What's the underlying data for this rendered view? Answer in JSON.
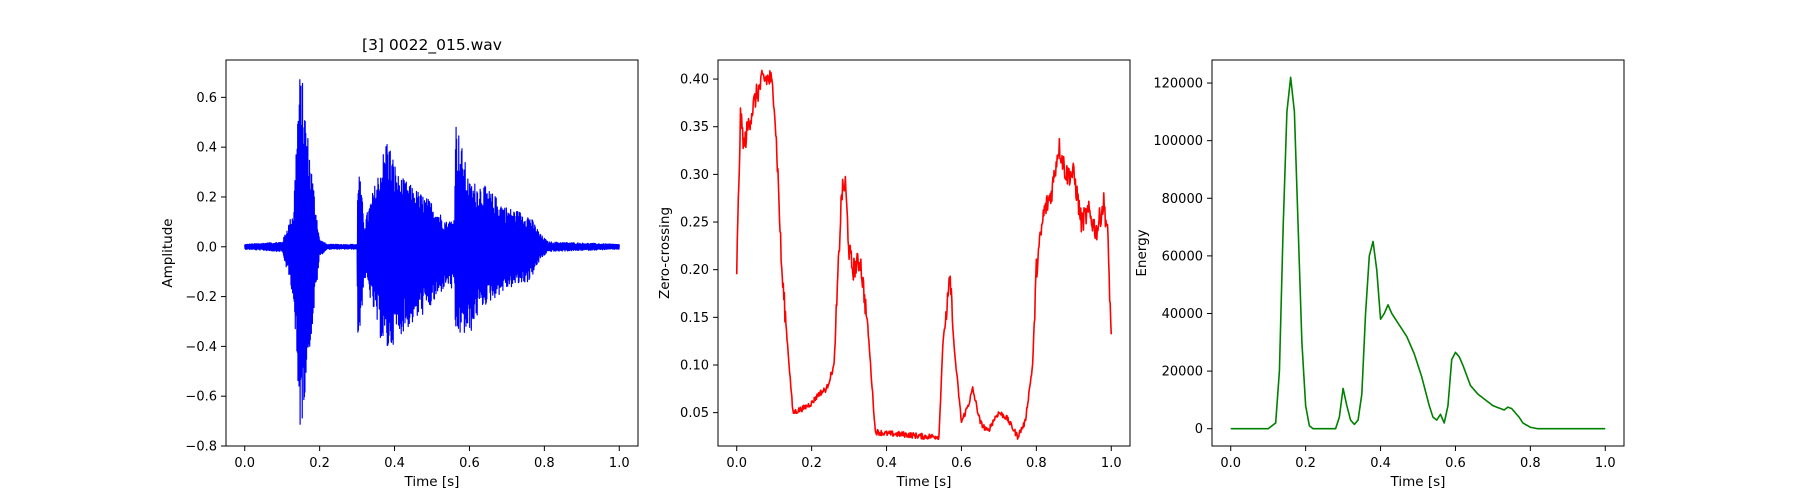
{
  "colors": {
    "waveform": "#0000ff",
    "zcr": "#ff0000",
    "energy": "#008000"
  },
  "chart_data": [
    {
      "type": "line",
      "title": "[3] 0022_015.wav",
      "xlabel": "Time [s]",
      "ylabel": "Amplitude",
      "xlim": [
        -0.05,
        1.05
      ],
      "ylim": [
        -0.8,
        0.75
      ],
      "xticks": [
        "0.0",
        "0.2",
        "0.4",
        "0.6",
        "0.8",
        "1.0"
      ],
      "yticks": [
        "-0.8",
        "-0.6",
        "-0.4",
        "-0.2",
        "0.0",
        "0.2",
        "0.4",
        "0.6"
      ],
      "series": [
        {
          "color": "#0000ff",
          "envelope": {
            "x": [
              0.0,
              0.1,
              0.13,
              0.145,
              0.155,
              0.165,
              0.18,
              0.2,
              0.22,
              0.3,
              0.302,
              0.32,
              0.36,
              0.38,
              0.41,
              0.45,
              0.5,
              0.54,
              0.56,
              0.562,
              0.6,
              0.63,
              0.7,
              0.76,
              0.79,
              0.81,
              1.0
            ],
            "upper": [
              0.01,
              0.02,
              0.15,
              0.7,
              0.66,
              0.5,
              0.3,
              0.03,
              0.01,
              0.01,
              0.36,
              0.1,
              0.32,
              0.45,
              0.29,
              0.24,
              0.18,
              0.1,
              0.12,
              0.53,
              0.26,
              0.26,
              0.16,
              0.13,
              0.05,
              0.02,
              0.01
            ],
            "lower": [
              -0.01,
              -0.02,
              -0.2,
              -0.75,
              -0.7,
              -0.5,
              -0.34,
              -0.04,
              -0.01,
              -0.01,
              -0.45,
              -0.12,
              -0.36,
              -0.43,
              -0.36,
              -0.31,
              -0.24,
              -0.15,
              -0.19,
              -0.36,
              -0.36,
              -0.25,
              -0.17,
              -0.14,
              -0.05,
              -0.02,
              -0.01
            ]
          }
        }
      ]
    },
    {
      "type": "line",
      "title": "",
      "xlabel": "Time [s]",
      "ylabel": "Zero-crossing",
      "xlim": [
        -0.05,
        1.05
      ],
      "ylim": [
        0.015,
        0.42
      ],
      "xticks": [
        "0.0",
        "0.2",
        "0.4",
        "0.6",
        "0.8",
        "1.0"
      ],
      "yticks": [
        "0.05",
        "0.10",
        "0.15",
        "0.20",
        "0.25",
        "0.30",
        "0.35",
        "0.40"
      ],
      "series": [
        {
          "color": "#ff0000",
          "x": [
            0.0,
            0.01,
            0.02,
            0.03,
            0.05,
            0.07,
            0.09,
            0.1,
            0.11,
            0.12,
            0.14,
            0.15,
            0.18,
            0.2,
            0.22,
            0.24,
            0.26,
            0.28,
            0.29,
            0.3,
            0.31,
            0.33,
            0.35,
            0.37,
            0.4,
            0.45,
            0.5,
            0.54,
            0.55,
            0.57,
            0.58,
            0.6,
            0.62,
            0.63,
            0.65,
            0.67,
            0.69,
            0.7,
            0.72,
            0.75,
            0.77,
            0.79,
            0.8,
            0.82,
            0.84,
            0.86,
            0.88,
            0.9,
            0.92,
            0.94,
            0.96,
            0.98,
            0.99,
            1.0
          ],
          "y": [
            0.2,
            0.36,
            0.33,
            0.35,
            0.38,
            0.4,
            0.4,
            0.38,
            0.3,
            0.2,
            0.1,
            0.05,
            0.055,
            0.06,
            0.07,
            0.075,
            0.1,
            0.28,
            0.29,
            0.22,
            0.2,
            0.21,
            0.14,
            0.03,
            0.028,
            0.027,
            0.025,
            0.025,
            0.12,
            0.19,
            0.12,
            0.04,
            0.06,
            0.075,
            0.04,
            0.03,
            0.045,
            0.05,
            0.045,
            0.025,
            0.04,
            0.1,
            0.2,
            0.26,
            0.28,
            0.33,
            0.3,
            0.3,
            0.25,
            0.26,
            0.24,
            0.27,
            0.24,
            0.13
          ]
        }
      ]
    },
    {
      "type": "line",
      "title": "",
      "xlabel": "Time [s]",
      "ylabel": "Energy",
      "xlim": [
        -0.05,
        1.05
      ],
      "ylim": [
        -6000,
        128000
      ],
      "xticks": [
        "0.0",
        "0.2",
        "0.4",
        "0.6",
        "0.8",
        "1.0"
      ],
      "yticks": [
        "0",
        "20000",
        "40000",
        "60000",
        "80000",
        "100000",
        "120000"
      ],
      "series": [
        {
          "color": "#008000",
          "x": [
            0.0,
            0.1,
            0.12,
            0.13,
            0.14,
            0.15,
            0.16,
            0.17,
            0.18,
            0.19,
            0.2,
            0.21,
            0.22,
            0.28,
            0.29,
            0.3,
            0.31,
            0.32,
            0.33,
            0.34,
            0.35,
            0.36,
            0.37,
            0.38,
            0.39,
            0.4,
            0.41,
            0.42,
            0.43,
            0.45,
            0.47,
            0.49,
            0.51,
            0.53,
            0.54,
            0.55,
            0.56,
            0.57,
            0.58,
            0.59,
            0.6,
            0.61,
            0.62,
            0.64,
            0.66,
            0.68,
            0.7,
            0.72,
            0.73,
            0.74,
            0.75,
            0.76,
            0.77,
            0.78,
            0.8,
            0.82,
            1.0
          ],
          "y": [
            0,
            0,
            2000,
            20000,
            70000,
            110000,
            122000,
            110000,
            70000,
            30000,
            8000,
            1000,
            0,
            0,
            4000,
            14000,
            8000,
            3000,
            1500,
            3000,
            12000,
            40000,
            60000,
            65000,
            55000,
            38000,
            40000,
            43000,
            40000,
            36000,
            32000,
            26000,
            18000,
            8000,
            4000,
            3000,
            5000,
            2000,
            8000,
            24000,
            26500,
            25000,
            22000,
            15000,
            12000,
            10000,
            8000,
            7000,
            6500,
            7500,
            7000,
            5500,
            4000,
            2000,
            500,
            0,
            0
          ]
        }
      ]
    }
  ]
}
